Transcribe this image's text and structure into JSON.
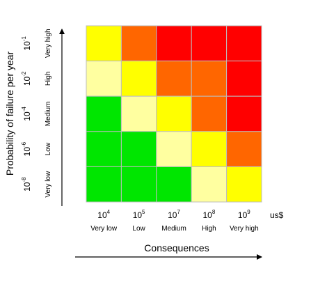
{
  "chart_data": {
    "type": "heatmap",
    "ylabel": "Probability of failure per year",
    "xlabel": "Consequences",
    "x_unit": "us$",
    "x_categories": [
      {
        "base": "10",
        "exp": "4",
        "label": "Very low"
      },
      {
        "base": "10",
        "exp": "5",
        "label": "Low"
      },
      {
        "base": "10",
        "exp": "7",
        "label": "Medium"
      },
      {
        "base": "10",
        "exp": "8",
        "label": "High"
      },
      {
        "base": "10",
        "exp": "9",
        "label": "Very high"
      }
    ],
    "y_categories": [
      {
        "base": "10",
        "exp": "-8",
        "label": "Very low"
      },
      {
        "base": "10",
        "exp": "-6",
        "label": "Low"
      },
      {
        "base": "10",
        "exp": "-4",
        "label": "Medium"
      },
      {
        "base": "10",
        "exp": "-2",
        "label": "High"
      },
      {
        "base": "10",
        "exp": "-1",
        "label": "Very high"
      }
    ],
    "risk_levels": [
      {
        "level": 1,
        "color": "#00e600"
      },
      {
        "level": 2,
        "color": "#ffffa0"
      },
      {
        "level": 3,
        "color": "#ffff00"
      },
      {
        "level": 4,
        "color": "#ff6600"
      },
      {
        "level": 5,
        "color": "#ff0000"
      }
    ],
    "grid_note": "rows listed from top (Very high) to bottom (Very low); columns Very low to Very high",
    "matrix": [
      [
        3,
        4,
        5,
        5,
        5
      ],
      [
        2,
        3,
        4,
        4,
        5
      ],
      [
        1,
        2,
        3,
        4,
        5
      ],
      [
        1,
        1,
        2,
        3,
        4
      ],
      [
        1,
        1,
        1,
        2,
        3
      ]
    ]
  }
}
